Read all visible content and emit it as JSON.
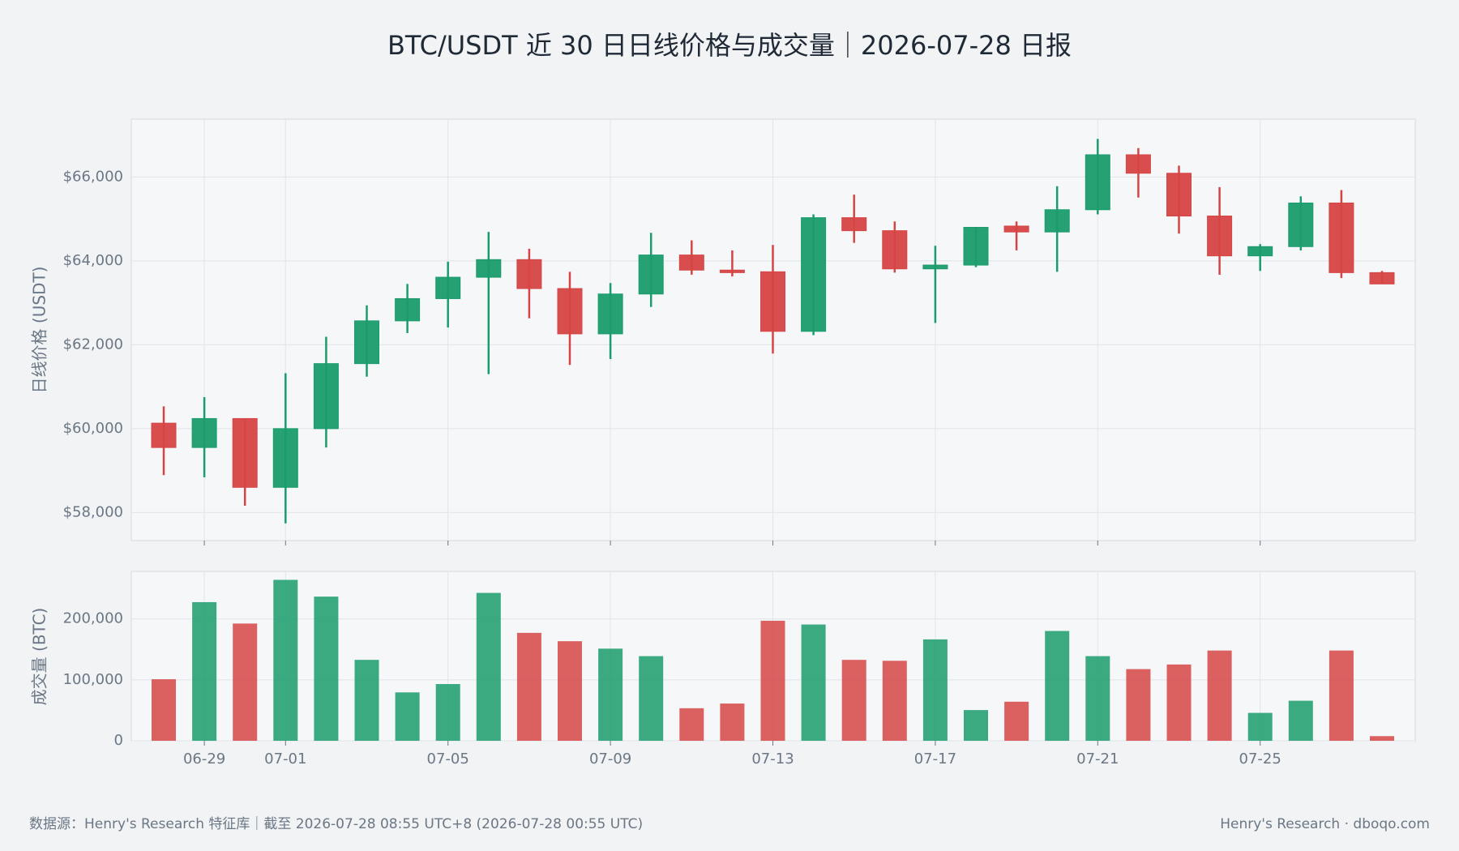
{
  "chart_data": {
    "type": "candlestick",
    "title": "BTC/USDT 近 30 日日线价格与成交量｜2026-07-28 日报",
    "categories": [
      null,
      "06-29",
      null,
      "07-01",
      null,
      null,
      null,
      "07-05",
      null,
      null,
      null,
      "07-09",
      null,
      null,
      null,
      "07-13",
      null,
      null,
      null,
      "07-17",
      null,
      null,
      null,
      "07-21",
      null,
      null,
      null,
      "07-25",
      null,
      null,
      null
    ],
    "open": [
      60130,
      59550,
      60240,
      58600,
      60000,
      61550,
      62570,
      63100,
      63610,
      64030,
      63340,
      62260,
      63210,
      64140,
      63780,
      63740,
      62320,
      65030,
      64720,
      63810,
      63900,
      64830,
      64690,
      65220,
      66530,
      66090,
      65070,
      64120,
      64340,
      65380,
      63720
    ],
    "high": [
      60530,
      60750,
      60240,
      61320,
      62190,
      62940,
      63450,
      63980,
      64690,
      64290,
      63740,
      63470,
      64670,
      64490,
      64250,
      64380,
      65110,
      65580,
      64940,
      64360,
      64800,
      64940,
      65780,
      66910,
      66690,
      66270,
      65760,
      64400,
      65540,
      65690,
      63760
    ],
    "low": [
      58890,
      58840,
      58160,
      57740,
      59550,
      61240,
      62280,
      62410,
      61300,
      62630,
      61520,
      61660,
      62900,
      63670,
      63630,
      61790,
      62230,
      64430,
      63720,
      62520,
      63850,
      64250,
      63740,
      65110,
      65510,
      64650,
      63670,
      63760,
      64250,
      63590,
      63450
    ],
    "close": [
      59550,
      60240,
      58600,
      60000,
      61550,
      62570,
      63100,
      63610,
      64030,
      63340,
      62260,
      63210,
      64140,
      63780,
      63720,
      62320,
      65030,
      64720,
      63810,
      63900,
      64800,
      64690,
      65220,
      66530,
      66090,
      65070,
      64120,
      64340,
      65380,
      63720,
      63450
    ],
    "up_color": "#1a9c6c",
    "down_color": "#d64545",
    "ylabel": "日线价格 (USDT)",
    "ylim": [
      57330,
      67380
    ],
    "yticks": [
      {
        "value": 58000,
        "label": "$58,000"
      },
      {
        "value": 60000,
        "label": "$60,000"
      },
      {
        "value": 62000,
        "label": "$62,000"
      },
      {
        "value": 64000,
        "label": "$64,000"
      },
      {
        "value": 66000,
        "label": "$66,000"
      }
    ],
    "grid": true,
    "volume": {
      "ylabel": "成交量 (BTC)",
      "values": [
        101000,
        227500,
        192400,
        264100,
        236600,
        132800,
        79400,
        93100,
        242700,
        177100,
        163400,
        151200,
        138900,
        53400,
        61100,
        197000,
        190800,
        132800,
        131300,
        166400,
        50400,
        64100,
        180200,
        138900,
        117600,
        125200,
        148100,
        45800,
        65700,
        148100,
        7600
      ],
      "ylim": [
        0,
        278000
      ],
      "yticks": [
        0,
        {
          "value": 100000,
          "label": "100,000"
        },
        {
          "value": 200000,
          "label": "200,000"
        }
      ]
    }
  },
  "footer": {
    "source": "数据源：Henry's Research 特征库｜截至 2026-07-28 08:55 UTC+8 (2026-07-28 00:55 UTC)",
    "brand": "Henry's Research · dboqo.com"
  }
}
